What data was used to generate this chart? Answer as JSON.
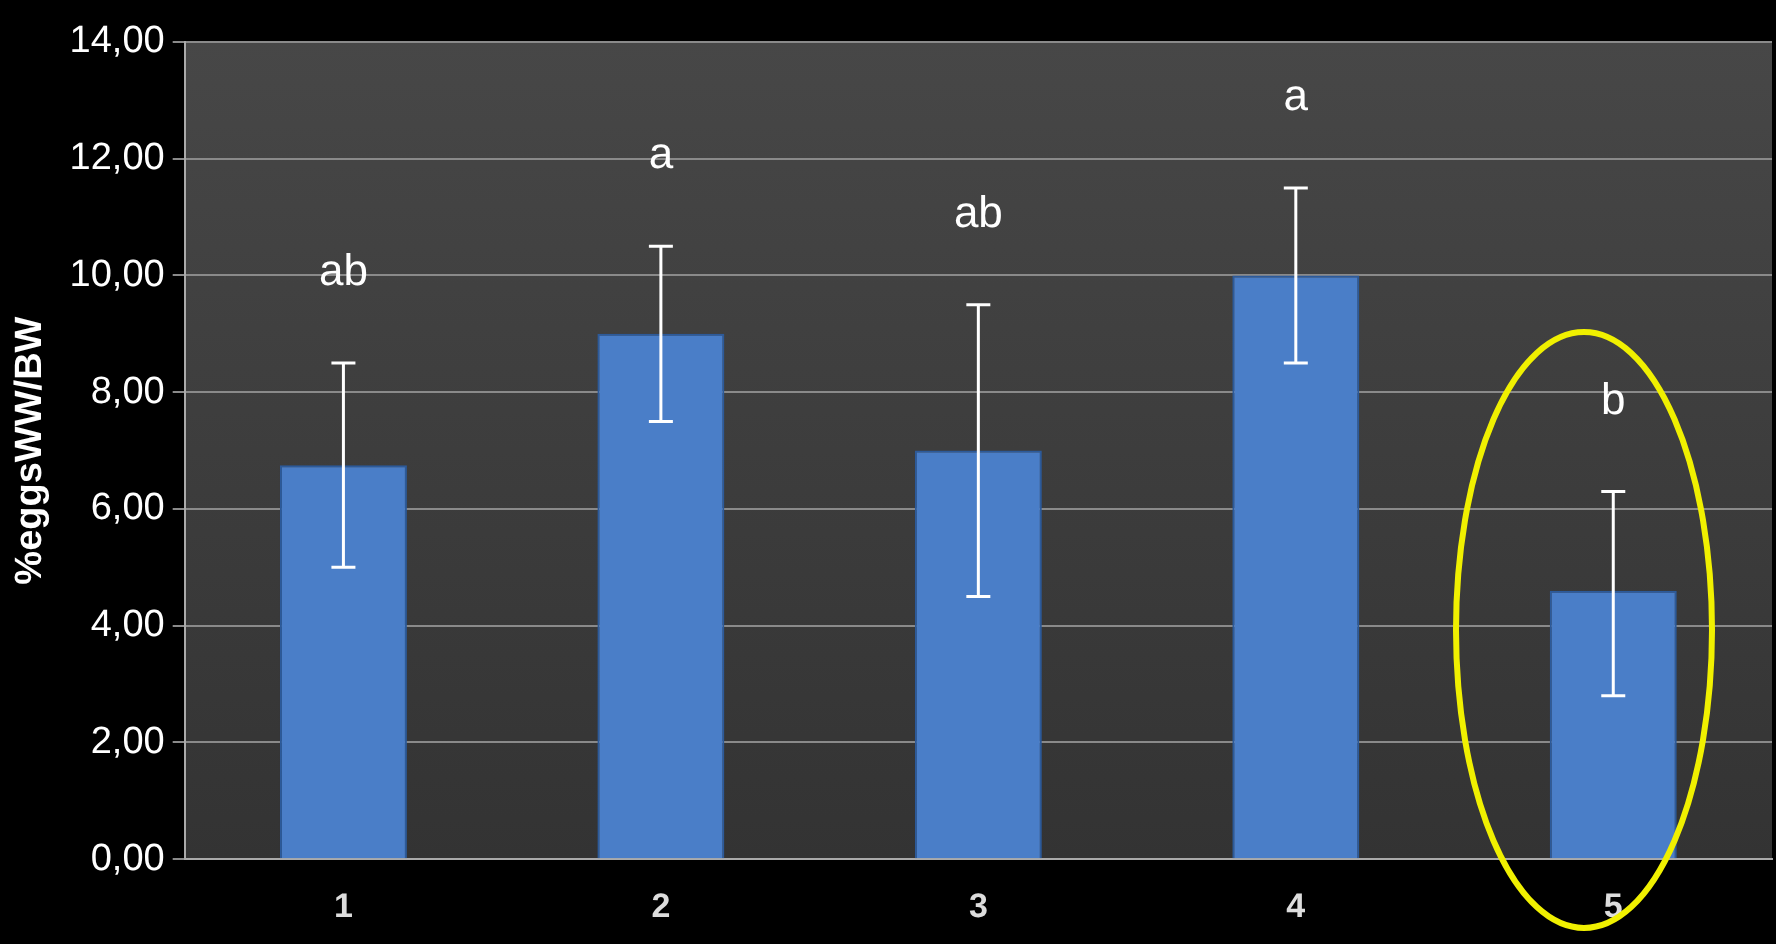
{
  "chart_data": {
    "type": "bar",
    "ylabel": "%eggsWW/BW",
    "categories": [
      "1",
      "2",
      "3",
      "4",
      "5"
    ],
    "values": [
      6.75,
      9.0,
      7.0,
      10.0,
      4.6
    ],
    "errors": [
      1.75,
      1.5,
      2.5,
      1.5,
      [
        2.8,
        6.3
      ]
    ],
    "color": "#4a7ec8",
    "ylim": [
      0,
      14
    ],
    "yticks": [
      {
        "value": 0,
        "label": "0,00"
      },
      {
        "value": 2,
        "label": "2,00"
      },
      {
        "value": 4,
        "label": "4,00"
      },
      {
        "value": 6,
        "label": "6,00"
      },
      {
        "value": 8,
        "label": "8,00"
      },
      {
        "value": 10,
        "label": "10,00"
      },
      {
        "value": 12,
        "label": "12,00"
      },
      {
        "value": 14,
        "label": "14,00"
      }
    ],
    "grid": "y",
    "legend": false,
    "annotations": [
      "ab",
      "a",
      "ab",
      "a",
      "b"
    ]
  }
}
